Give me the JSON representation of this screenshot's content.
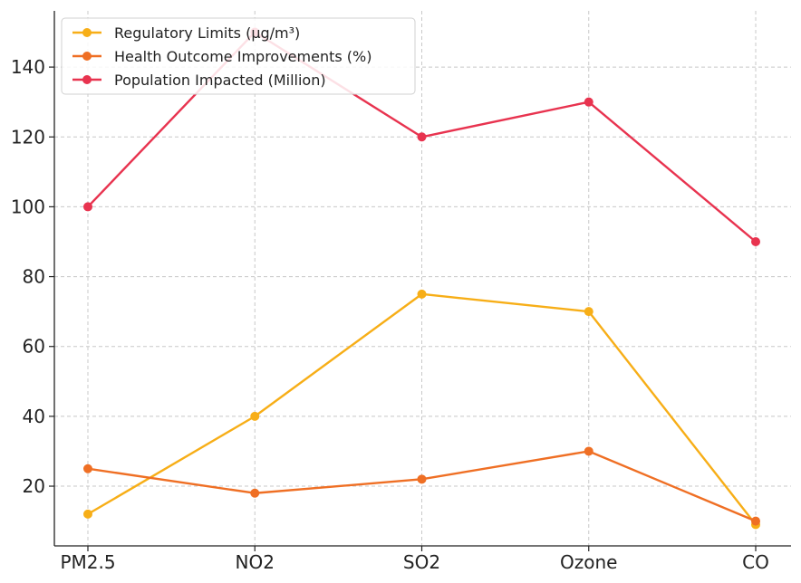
{
  "chart_data": {
    "type": "line",
    "categories": [
      "PM2.5",
      "NO2",
      "SO2",
      "Ozone",
      "CO"
    ],
    "series": [
      {
        "name": "Regulatory Limits (µg/m³)",
        "values": [
          12,
          40,
          75,
          70,
          9
        ],
        "color": "#f7ae17"
      },
      {
        "name": "Health Outcome Improvements (%)",
        "values": [
          25,
          18,
          22,
          30,
          10
        ],
        "color": "#ef6f24"
      },
      {
        "name": "Population Impacted (Million)",
        "values": [
          100,
          150,
          120,
          130,
          90
        ],
        "color": "#e8334f"
      }
    ],
    "yticks": [
      20,
      40,
      60,
      80,
      100,
      120,
      140
    ],
    "ylim": [
      2.9,
      156.1
    ],
    "grid": true,
    "legend_position": "top-left",
    "title": "",
    "xlabel": "",
    "ylabel": ""
  }
}
